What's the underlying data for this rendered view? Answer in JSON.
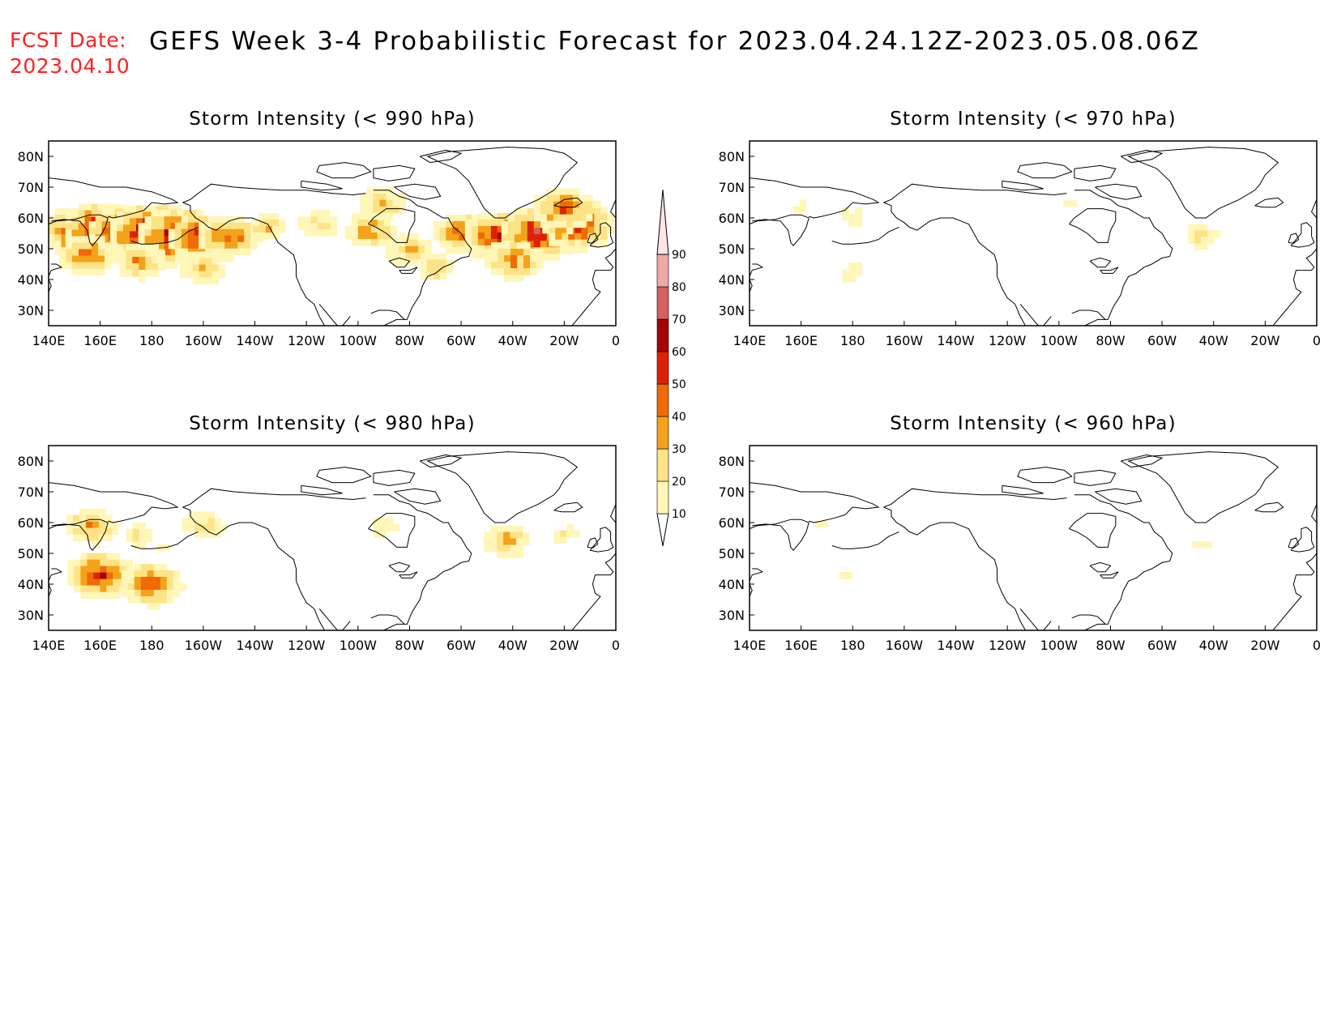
{
  "header": {
    "fcst_label": "FCST Date:",
    "fcst_date": "2023.04.10",
    "title": "GEFS Week 3-4 Probabilistic Forecast for 2023.04.24.12Z-2023.05.08.06Z"
  },
  "axes": {
    "lon_ticks": [
      "140E",
      "160E",
      "180",
      "160W",
      "140W",
      "120W",
      "100W",
      "80W",
      "60W",
      "40W",
      "20W",
      "0"
    ],
    "lat_ticks": [
      "80N",
      "70N",
      "60N",
      "50N",
      "40N",
      "30N"
    ]
  },
  "panels": [
    {
      "id": "p990",
      "title": "Storm Intensity (< 990 hPa)",
      "intensity": 1.0
    },
    {
      "id": "p970",
      "title": "Storm Intensity (< 970 hPa)",
      "intensity": 0.25
    },
    {
      "id": "p980",
      "title": "Storm Intensity (< 980 hPa)",
      "intensity": 0.55
    },
    {
      "id": "p960",
      "title": "Storm Intensity (< 960 hPa)",
      "intensity": 0.12
    }
  ],
  "colorbar": {
    "labels": [
      "10",
      "20",
      "30",
      "40",
      "50",
      "60",
      "70",
      "80",
      "90"
    ],
    "colors": [
      "#fff6b8",
      "#fde387",
      "#f4a21a",
      "#f06a06",
      "#dc2203",
      "#a50505",
      "#d46060",
      "#f0a8a8",
      "#ffe5e5"
    ]
  },
  "chart_data": [
    {
      "type": "heatmap",
      "title": "Storm Intensity (< 990 hPa)",
      "blobs": [
        {
          "lon": 150,
          "lat": 56,
          "value": 55
        },
        {
          "lon": 160,
          "lat": 57,
          "value": 60
        },
        {
          "lon": 170,
          "lat": 55,
          "value": 65
        },
        {
          "lon": 180,
          "lat": 55,
          "value": 75
        },
        {
          "lon": 190,
          "lat": 54,
          "value": 70
        },
        {
          "lon": 200,
          "lat": 53,
          "value": 60
        },
        {
          "lon": 210,
          "lat": 54,
          "value": 50
        },
        {
          "lon": 155,
          "lat": 48,
          "value": 45
        },
        {
          "lon": 175,
          "lat": 46,
          "value": 40
        },
        {
          "lon": 200,
          "lat": 44,
          "value": 35
        },
        {
          "lon": 225,
          "lat": 57,
          "value": 30
        },
        {
          "lon": 245,
          "lat": 58,
          "value": 30
        },
        {
          "lon": 265,
          "lat": 56,
          "value": 40
        },
        {
          "lon": 280,
          "lat": 50,
          "value": 35
        },
        {
          "lon": 300,
          "lat": 55,
          "value": 45
        },
        {
          "lon": 315,
          "lat": 54,
          "value": 60
        },
        {
          "lon": 330,
          "lat": 55,
          "value": 65
        },
        {
          "lon": 345,
          "lat": 58,
          "value": 60
        },
        {
          "lon": 320,
          "lat": 46,
          "value": 45
        },
        {
          "lon": 290,
          "lat": 44,
          "value": 30
        },
        {
          "lon": 270,
          "lat": 65,
          "value": 35
        },
        {
          "lon": 340,
          "lat": 63,
          "value": 50
        }
      ]
    },
    {
      "type": "heatmap",
      "title": "Storm Intensity (< 970 hPa)",
      "blobs": [
        {
          "lon": 160,
          "lat": 63,
          "value": 15
        },
        {
          "lon": 180,
          "lat": 60,
          "value": 20
        },
        {
          "lon": 180,
          "lat": 42,
          "value": 20
        },
        {
          "lon": 315,
          "lat": 54,
          "value": 25
        },
        {
          "lon": 265,
          "lat": 65,
          "value": 15
        }
      ]
    },
    {
      "type": "heatmap",
      "title": "Storm Intensity (< 980 hPa)",
      "blobs": [
        {
          "lon": 157,
          "lat": 59,
          "value": 40
        },
        {
          "lon": 175,
          "lat": 56,
          "value": 25
        },
        {
          "lon": 200,
          "lat": 59,
          "value": 30
        },
        {
          "lon": 165,
          "lat": 48,
          "value": 15
        },
        {
          "lon": 185,
          "lat": 52,
          "value": 15
        },
        {
          "lon": 318,
          "lat": 54,
          "value": 35
        },
        {
          "lon": 340,
          "lat": 56,
          "value": 20
        },
        {
          "lon": 270,
          "lat": 58,
          "value": 20
        },
        {
          "lon": 160,
          "lat": 43,
          "value": 55
        },
        {
          "lon": 180,
          "lat": 40,
          "value": 50
        }
      ]
    },
    {
      "type": "heatmap",
      "title": "Storm Intensity (< 960 hPa)",
      "blobs": [
        {
          "lon": 315,
          "lat": 53,
          "value": 15
        },
        {
          "lon": 178,
          "lat": 43,
          "value": 15
        },
        {
          "lon": 168,
          "lat": 60,
          "value": 12
        }
      ]
    }
  ]
}
